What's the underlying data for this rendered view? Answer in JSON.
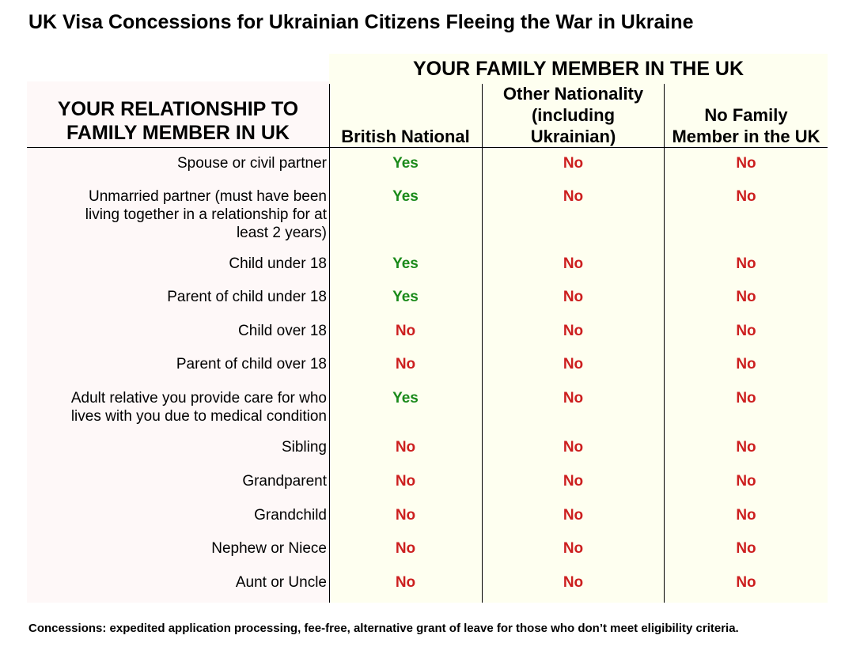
{
  "title": "UK Visa Concessions for Ukrainian Citizens Fleeing the War in Ukraine",
  "group_header": "YOUR FAMILY MEMBER IN THE UK",
  "relationship_header": [
    "YOUR RELATIONSHIP TO",
    "FAMILY MEMBER IN UK"
  ],
  "columns": [
    [
      "British National"
    ],
    [
      "Other Nationality",
      "(including",
      "Ukrainian)"
    ],
    [
      "No Family",
      "Member in the UK"
    ]
  ],
  "colors": {
    "yes": "#1a8a1a",
    "no": "#cc1f1f",
    "table_bg_right": "#fefff0",
    "table_bg_left": "#fef8f8"
  },
  "rows": [
    {
      "relationship": [
        "Spouse or civil partner"
      ],
      "values": [
        "Yes",
        "No",
        "No"
      ]
    },
    {
      "relationship": [
        "Unmarried partner (must have been",
        "living together in a relationship for at",
        "least 2 years)"
      ],
      "values": [
        "Yes",
        "No",
        "No"
      ]
    },
    {
      "relationship": [
        "Child under 18"
      ],
      "values": [
        "Yes",
        "No",
        "No"
      ]
    },
    {
      "relationship": [
        "Parent of child under 18"
      ],
      "values": [
        "Yes",
        "No",
        "No"
      ]
    },
    {
      "relationship": [
        "Child over 18"
      ],
      "values": [
        "No",
        "No",
        "No"
      ]
    },
    {
      "relationship": [
        "Parent of child over 18"
      ],
      "values": [
        "No",
        "No",
        "No"
      ]
    },
    {
      "relationship": [
        "Adult relative you provide care for who",
        "lives with you due to medical condition"
      ],
      "values": [
        "Yes",
        "No",
        "No"
      ]
    },
    {
      "relationship": [
        "Sibling"
      ],
      "values": [
        "No",
        "No",
        "No"
      ]
    },
    {
      "relationship": [
        "Grandparent"
      ],
      "values": [
        "No",
        "No",
        "No"
      ]
    },
    {
      "relationship": [
        "Grandchild"
      ],
      "values": [
        "No",
        "No",
        "No"
      ]
    },
    {
      "relationship": [
        "Nephew or Niece"
      ],
      "values": [
        "No",
        "No",
        "No"
      ]
    },
    {
      "relationship": [
        "Aunt or Uncle"
      ],
      "values": [
        "No",
        "No",
        "No"
      ]
    }
  ],
  "footnote": "Concessions: expedited application processing, fee-free, alternative grant of leave for those who don’t meet eligibility criteria."
}
